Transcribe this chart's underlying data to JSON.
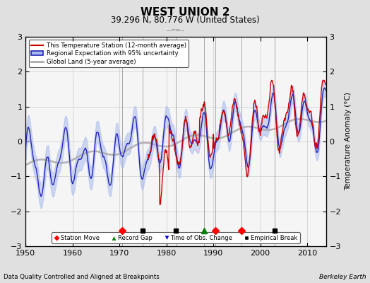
{
  "title": "WEST UNION 2",
  "subtitle": "39.296 N, 80.776 W (United States)",
  "xlabel_left": "Data Quality Controlled and Aligned at Breakpoints",
  "xlabel_right": "Berkeley Earth",
  "ylabel": "Temperature Anomaly (°C)",
  "xlim": [
    1950,
    2014
  ],
  "ylim": [
    -3,
    3
  ],
  "yticks": [
    -3,
    -2,
    -1,
    0,
    1,
    2,
    3
  ],
  "xticks": [
    1950,
    1960,
    1970,
    1980,
    1990,
    2000,
    2010
  ],
  "bg_color": "#e0e0e0",
  "plot_bg_color": "#f5f5f5",
  "grid_color": "#cccccc",
  "station_move_years": [
    1970.5,
    1990.5,
    1996.0
  ],
  "empirical_break_years": [
    1975.0,
    1982.0,
    2003.0
  ],
  "record_gap_years": [
    1988.0
  ],
  "time_obs_change_years": [],
  "vline_years": [
    1970.5,
    1975.0,
    1982.0,
    1988.0,
    1990.5,
    1996.0,
    2003.0
  ],
  "red_line_color": "#cc0000",
  "blue_line_color": "#2222bb",
  "blue_fill_color": "#aabbee",
  "gray_line_color": "#aaaaaa",
  "station_start_year": 1976,
  "legend_items": [
    "This Temperature Station (12-month average)",
    "Regional Expectation with 95% uncertainty",
    "Global Land (5-year average)"
  ]
}
